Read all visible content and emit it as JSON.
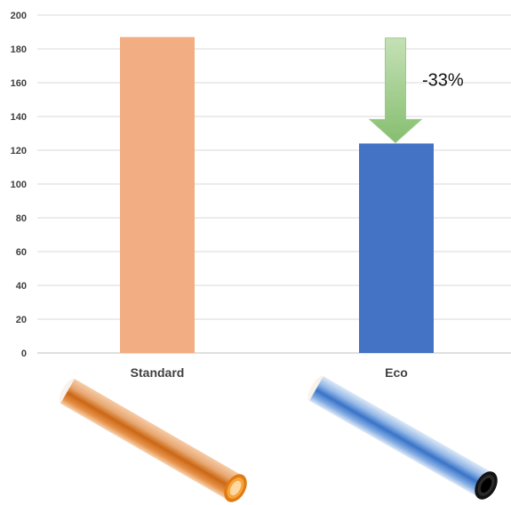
{
  "chart_data": {
    "type": "bar",
    "categories": [
      "Standard",
      "Eco"
    ],
    "values": [
      187,
      124
    ],
    "ylim": [
      0,
      200
    ],
    "yticks": [
      0,
      20,
      40,
      60,
      80,
      100,
      120,
      140,
      160,
      180,
      200
    ],
    "grid": true,
    "title": "",
    "xlabel": "",
    "ylabel": "",
    "bar_colors": [
      "#F2AE82",
      "#4472C4"
    ],
    "annotation": {
      "text": "-33%",
      "type": "down-arrow",
      "from_value": 187,
      "to_value": 124,
      "category": "Eco",
      "color": "#8DC27A"
    }
  },
  "images": [
    {
      "name": "orange-pipe",
      "category": "Standard",
      "color": "#D9700F"
    },
    {
      "name": "blue-pipe",
      "category": "Eco",
      "color": "#3F7CD1"
    }
  ]
}
